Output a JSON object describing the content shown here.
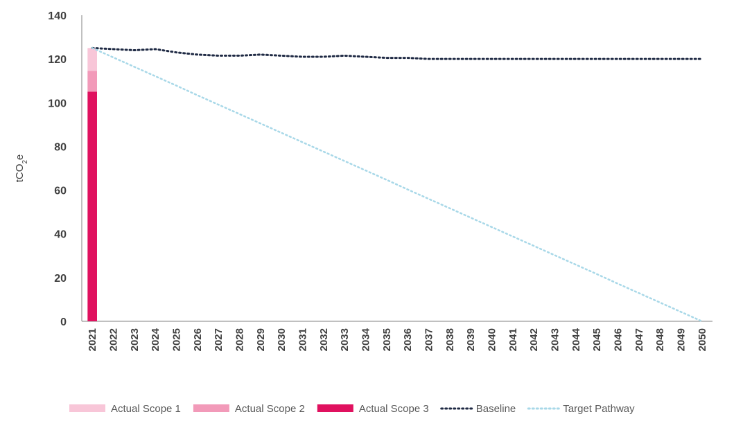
{
  "chart_data": {
    "type": "bar",
    "ylabel": "tCO2e",
    "ylim": [
      0,
      140
    ],
    "yticks": [
      0,
      20,
      40,
      60,
      80,
      100,
      120,
      140
    ],
    "categories": [
      "2021",
      "2022",
      "2023",
      "2024",
      "2025",
      "2026",
      "2027",
      "2028",
      "2029",
      "2030",
      "2031",
      "2032",
      "2033",
      "2034",
      "2035",
      "2036",
      "2037",
      "2038",
      "2039",
      "2040",
      "2041",
      "2042",
      "2043",
      "2044",
      "2045",
      "2046",
      "2047",
      "2048",
      "2049",
      "2050"
    ],
    "grid": false,
    "legend_position": "bottom",
    "series": [
      {
        "name": "Actual Scope 1",
        "kind": "stacked-bar",
        "color": "#F8C6D8",
        "values": [
          10.5,
          null,
          null,
          null,
          null,
          null,
          null,
          null,
          null,
          null,
          null,
          null,
          null,
          null,
          null,
          null,
          null,
          null,
          null,
          null,
          null,
          null,
          null,
          null,
          null,
          null,
          null,
          null,
          null,
          null
        ]
      },
      {
        "name": "Actual Scope 2",
        "kind": "stacked-bar",
        "color": "#F29AB9",
        "values": [
          9.5,
          null,
          null,
          null,
          null,
          null,
          null,
          null,
          null,
          null,
          null,
          null,
          null,
          null,
          null,
          null,
          null,
          null,
          null,
          null,
          null,
          null,
          null,
          null,
          null,
          null,
          null,
          null,
          null,
          null
        ]
      },
      {
        "name": "Actual Scope 3",
        "kind": "stacked-bar",
        "color": "#E0115F",
        "values": [
          105,
          null,
          null,
          null,
          null,
          null,
          null,
          null,
          null,
          null,
          null,
          null,
          null,
          null,
          null,
          null,
          null,
          null,
          null,
          null,
          null,
          null,
          null,
          null,
          null,
          null,
          null,
          null,
          null,
          null
        ]
      },
      {
        "name": "Baseline",
        "kind": "dotted-line",
        "color": "#1F2A44",
        "values": [
          125,
          124.5,
          124,
          124.5,
          123,
          122,
          121.5,
          121.5,
          122,
          121.5,
          121,
          121,
          121.5,
          121,
          120.5,
          120.5,
          120,
          120,
          120,
          120,
          120,
          120,
          120,
          120,
          120,
          120,
          120,
          120,
          120,
          120
        ]
      },
      {
        "name": "Target Pathway",
        "kind": "dotted-line",
        "color": "#A8D8E8",
        "values": [
          125,
          120.7,
          116.4,
          112.1,
          107.8,
          103.4,
          99.1,
          94.8,
          90.5,
          86.2,
          81.9,
          77.6,
          73.3,
          69,
          64.7,
          60.3,
          56,
          51.7,
          47.4,
          43.1,
          38.8,
          34.5,
          30.2,
          25.9,
          21.6,
          17.2,
          12.9,
          8.6,
          4.3,
          0
        ]
      }
    ]
  }
}
